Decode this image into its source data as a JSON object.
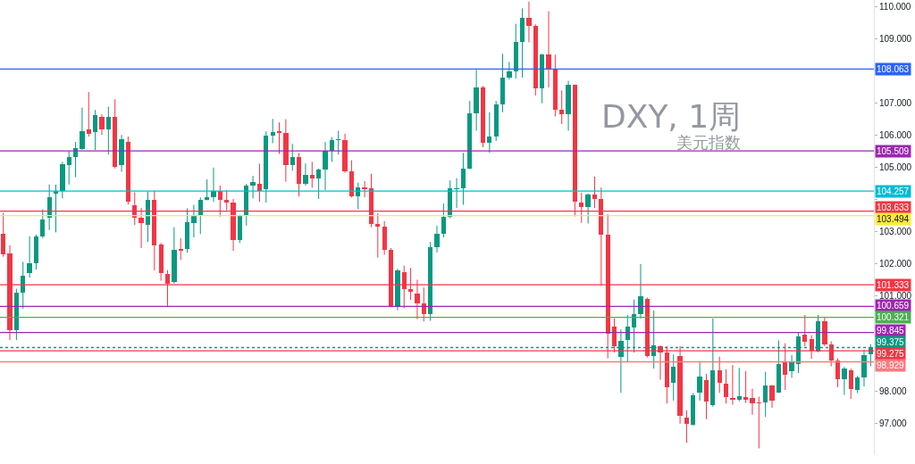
{
  "chart_data": {
    "type": "candlestick",
    "annotations": [
      "DXY, 1周",
      "美元指数"
    ],
    "categories": [
      null,
      null,
      null,
      null,
      null,
      null,
      null,
      null,
      null,
      null,
      null,
      null,
      null,
      null,
      null,
      null,
      null,
      null,
      null,
      null,
      null,
      null,
      null,
      null,
      null,
      null,
      null,
      null,
      null,
      null,
      null,
      null,
      null,
      null,
      null,
      null,
      null,
      null,
      null,
      null,
      null,
      null,
      null,
      null,
      null,
      null,
      null,
      null,
      null,
      null,
      null,
      null,
      null,
      null,
      null,
      null,
      null,
      null,
      null,
      null,
      null,
      null,
      null,
      null,
      null,
      null,
      null,
      null,
      null,
      null,
      null,
      null,
      null,
      null,
      null,
      null,
      null,
      null,
      null,
      null,
      null,
      null,
      null,
      null,
      null,
      null,
      null,
      null,
      null,
      null,
      null,
      null,
      null,
      null,
      null,
      null,
      null,
      null,
      null,
      null,
      null,
      null,
      null,
      null,
      null,
      null,
      null,
      null,
      null,
      null,
      null,
      null,
      null,
      null,
      null,
      null,
      null,
      null,
      null,
      null,
      null,
      null,
      null,
      null,
      null,
      null,
      null,
      null,
      null,
      null,
      null,
      null,
      null
    ],
    "ohlc": [
      [
        102.93,
        103.58,
        102.21,
        102.28
      ],
      [
        102.3,
        102.57,
        99.61,
        99.91
      ],
      [
        99.91,
        101.21,
        99.61,
        101.09
      ],
      [
        101.09,
        102.05,
        100.58,
        101.63
      ],
      [
        101.71,
        102.85,
        101.56,
        102.02
      ],
      [
        102.02,
        102.9,
        101.81,
        102.85
      ],
      [
        102.85,
        103.69,
        102.79,
        103.38
      ],
      [
        103.44,
        104.46,
        103.04,
        104.08
      ],
      [
        104.2,
        104.46,
        102.97,
        104.25
      ],
      [
        104.26,
        105.17,
        104.03,
        105.11
      ],
      [
        105.06,
        105.49,
        104.46,
        105.33
      ],
      [
        105.31,
        105.79,
        104.69,
        105.59
      ],
      [
        105.57,
        106.86,
        105.54,
        106.13
      ],
      [
        106.17,
        107.35,
        105.96,
        106.05
      ],
      [
        106.1,
        106.79,
        105.54,
        106.63
      ],
      [
        106.58,
        106.65,
        106.01,
        106.17
      ],
      [
        106.17,
        106.89,
        105.4,
        106.56
      ],
      [
        106.58,
        107.12,
        104.96,
        105.01
      ],
      [
        105.08,
        106.01,
        104.86,
        105.87
      ],
      [
        105.79,
        105.96,
        103.84,
        103.94
      ],
      [
        103.83,
        104.22,
        103.2,
        103.43
      ],
      [
        103.43,
        103.73,
        102.48,
        103.27
      ],
      [
        103.2,
        104.24,
        102.67,
        103.99
      ],
      [
        103.99,
        104.27,
        101.78,
        102.56
      ],
      [
        102.6,
        102.64,
        101.46,
        101.71
      ],
      [
        101.68,
        101.79,
        100.65,
        101.37
      ],
      [
        101.42,
        103.13,
        101.37,
        102.42
      ],
      [
        102.45,
        102.79,
        102.11,
        102.42
      ],
      [
        102.45,
        103.72,
        102.34,
        103.29
      ],
      [
        103.27,
        103.83,
        102.81,
        103.48
      ],
      [
        103.48,
        104.06,
        102.92,
        103.97
      ],
      [
        103.97,
        104.62,
        103.97,
        104.08
      ],
      [
        104.08,
        104.99,
        103.92,
        104.27
      ],
      [
        104.27,
        104.43,
        103.46,
        103.97
      ],
      [
        103.97,
        104.29,
        103.66,
        103.89
      ],
      [
        103.89,
        104.01,
        102.39,
        102.73
      ],
      [
        102.73,
        103.52,
        102.64,
        103.47
      ],
      [
        103.47,
        104.48,
        103.18,
        104.43
      ],
      [
        104.43,
        104.73,
        104.03,
        104.55
      ],
      [
        104.49,
        105.11,
        103.92,
        104.27
      ],
      [
        104.31,
        106.12,
        103.9,
        106.0
      ],
      [
        106.0,
        106.51,
        105.75,
        106.1
      ],
      [
        106.12,
        106.4,
        105.42,
        106.08
      ],
      [
        106.08,
        106.5,
        104.55,
        105.08
      ],
      [
        105.08,
        105.73,
        104.89,
        105.31
      ],
      [
        105.31,
        105.45,
        104.09,
        104.49
      ],
      [
        104.49,
        105.12,
        104.43,
        104.75
      ],
      [
        104.75,
        105.17,
        104.36,
        104.64
      ],
      [
        104.64,
        104.96,
        104.01,
        104.94
      ],
      [
        104.94,
        105.79,
        104.29,
        105.51
      ],
      [
        105.51,
        105.94,
        105.17,
        105.85
      ],
      [
        105.85,
        106.14,
        105.4,
        105.87
      ],
      [
        105.85,
        106.05,
        104.83,
        104.87
      ],
      [
        104.87,
        105.22,
        104.06,
        104.09
      ],
      [
        104.09,
        104.52,
        103.69,
        104.36
      ],
      [
        104.36,
        104.57,
        104.06,
        104.32
      ],
      [
        104.34,
        104.8,
        103.13,
        103.22
      ],
      [
        103.22,
        103.57,
        102.18,
        103.16
      ],
      [
        103.16,
        103.32,
        102.27,
        102.42
      ],
      [
        102.42,
        102.48,
        100.63,
        100.67
      ],
      [
        100.67,
        101.83,
        100.54,
        101.77
      ],
      [
        101.74,
        101.93,
        100.6,
        101.21
      ],
      [
        101.21,
        101.86,
        100.86,
        101.12
      ],
      [
        101.05,
        101.49,
        100.26,
        100.75
      ],
      [
        100.75,
        101.25,
        100.19,
        100.41
      ],
      [
        100.41,
        102.67,
        100.21,
        102.51
      ],
      [
        102.51,
        103.18,
        102.34,
        102.92
      ],
      [
        102.92,
        103.87,
        102.81,
        103.46
      ],
      [
        103.46,
        104.59,
        103.41,
        104.34
      ],
      [
        104.32,
        104.66,
        103.73,
        104.34
      ],
      [
        104.34,
        105.45,
        103.83,
        104.96
      ],
      [
        104.96,
        107.07,
        104.94,
        106.68
      ],
      [
        106.68,
        108.04,
        106.14,
        107.49
      ],
      [
        107.49,
        107.54,
        105.63,
        105.77
      ],
      [
        105.77,
        106.72,
        105.45,
        105.96
      ],
      [
        105.96,
        107.07,
        105.82,
        106.96
      ],
      [
        106.96,
        108.54,
        106.72,
        107.81
      ],
      [
        107.81,
        108.29,
        107.74,
        108.0
      ],
      [
        108.0,
        109.48,
        107.77,
        108.92
      ],
      [
        108.92,
        109.96,
        107.8,
        109.65
      ],
      [
        109.65,
        110.17,
        108.9,
        109.4
      ],
      [
        109.4,
        109.46,
        107.24,
        107.46
      ],
      [
        107.46,
        108.54,
        107.0,
        108.51
      ],
      [
        108.51,
        109.87,
        107.49,
        108.09
      ],
      [
        108.09,
        108.51,
        106.59,
        106.79
      ],
      [
        106.79,
        107.4,
        106.35,
        106.65
      ],
      [
        106.65,
        107.7,
        106.14,
        107.58
      ],
      [
        107.58,
        107.58,
        103.47,
        103.92
      ],
      [
        103.9,
        104.2,
        103.27,
        103.75
      ],
      [
        103.75,
        104.18,
        103.25,
        104.15
      ],
      [
        104.15,
        104.71,
        103.73,
        104.01
      ],
      [
        104.01,
        104.37,
        101.31,
        102.91
      ],
      [
        102.91,
        103.54,
        99.04,
        99.81
      ],
      [
        100.02,
        100.29,
        99.22,
        99.42
      ],
      [
        99.09,
        99.94,
        97.96,
        99.58
      ],
      [
        99.6,
        100.39,
        98.93,
        100.03
      ],
      [
        100.0,
        100.87,
        99.22,
        100.43
      ],
      [
        100.43,
        101.98,
        100.28,
        100.99
      ],
      [
        100.9,
        100.94,
        99.07,
        99.11
      ],
      [
        99.11,
        100.53,
        98.72,
        99.44
      ],
      [
        99.42,
        99.44,
        98.37,
        99.22
      ],
      [
        99.22,
        99.42,
        97.63,
        98.14
      ],
      [
        98.27,
        99.16,
        97.72,
        98.79
      ],
      [
        99.11,
        99.42,
        97.0,
        97.25
      ],
      [
        97.19,
        97.42,
        96.4,
        97.0
      ],
      [
        96.98,
        97.96,
        96.94,
        97.88
      ],
      [
        97.98,
        98.95,
        97.72,
        98.46
      ],
      [
        98.37,
        98.55,
        97.14,
        97.7
      ],
      [
        97.59,
        100.28,
        97.53,
        98.67
      ],
      [
        98.67,
        99.09,
        97.96,
        98.27
      ],
      [
        98.24,
        98.7,
        97.63,
        97.84
      ],
      [
        97.81,
        98.83,
        97.59,
        97.74
      ],
      [
        97.74,
        98.74,
        97.7,
        97.86
      ],
      [
        97.84,
        98.64,
        97.65,
        97.74
      ],
      [
        97.81,
        98.09,
        97.28,
        97.63
      ],
      [
        97.65,
        97.84,
        96.23,
        97.64
      ],
      [
        97.65,
        98.62,
        97.21,
        98.18
      ],
      [
        98.18,
        98.21,
        97.5,
        97.72
      ],
      [
        97.96,
        99.6,
        97.96,
        98.86
      ],
      [
        98.95,
        99.51,
        98.05,
        98.53
      ],
      [
        98.65,
        99.14,
        98.43,
        98.95
      ],
      [
        98.86,
        99.85,
        98.58,
        99.73
      ],
      [
        99.77,
        100.39,
        99.42,
        99.57
      ],
      [
        99.63,
        99.76,
        99.02,
        99.27
      ],
      [
        99.25,
        100.39,
        99.23,
        100.2
      ],
      [
        100.2,
        100.31,
        99.42,
        99.48
      ],
      [
        99.48,
        99.57,
        98.79,
        98.98
      ],
      [
        98.98,
        99.04,
        98.14,
        98.39
      ],
      [
        98.39,
        98.77,
        97.9,
        98.72
      ],
      [
        98.67,
        98.72,
        97.77,
        98.07
      ],
      [
        98.05,
        98.49,
        97.96,
        98.44
      ],
      [
        98.44,
        99.3,
        98.16,
        99.14
      ],
      [
        99.16,
        99.48,
        98.79,
        99.38
      ]
    ],
    "colors": [
      "#f23645",
      "#f23645",
      "#089981",
      "#089981",
      "#089981",
      "#089981",
      "#089981",
      "#089981",
      "#089981",
      "#089981",
      "#089981",
      "#089981",
      "#089981",
      "#f23645",
      "#089981",
      "#f23645",
      "#089981",
      "#f23645",
      "#089981",
      "#f23645",
      "#f23645",
      "#f23645",
      "#089981",
      "#f23645",
      "#f23645",
      "#f23645",
      "#089981",
      "#f23645",
      "#089981",
      "#089981",
      "#089981",
      "#089981",
      "#089981",
      "#f23645",
      "#f23645",
      "#f23645",
      "#089981",
      "#089981",
      "#089981",
      "#f23645",
      "#089981",
      "#089981",
      "#f23645",
      "#f23645",
      "#089981",
      "#f23645",
      "#089981",
      "#f23645",
      "#089981",
      "#089981",
      "#089981",
      "#089981",
      "#f23645",
      "#f23645",
      "#089981",
      "#f23645",
      "#f23645",
      "#f23645",
      "#f23645",
      "#f23645",
      "#089981",
      "#f23645",
      "#f23645",
      "#f23645",
      "#f23645",
      "#089981",
      "#089981",
      "#089981",
      "#089981",
      "#089981",
      "#089981",
      "#089981",
      "#089981",
      "#f23645",
      "#089981",
      "#089981",
      "#089981",
      "#089981",
      "#089981",
      "#089981",
      "#f23645",
      "#f23645",
      "#089981",
      "#f23645",
      "#f23645",
      "#f23645",
      "#089981",
      "#f23645",
      "#f23645",
      "#089981",
      "#f23645",
      "#f23645",
      "#f23645",
      "#f23645",
      "#089981",
      "#089981",
      "#089981",
      "#089981",
      "#f23645",
      "#089981",
      "#f23645",
      "#f23645",
      "#089981",
      "#f23645",
      "#f23645",
      "#089981",
      "#089981",
      "#f23645",
      "#089981",
      "#f23645",
      "#f23645",
      "#f23645",
      "#089981",
      "#f23645",
      "#f23645",
      "#f23645",
      "#089981",
      "#f23645",
      "#089981",
      "#f23645",
      "#089981",
      "#089981",
      "#f23645",
      "#f23645",
      "#089981",
      "#f23645",
      "#f23645",
      "#f23645",
      "#089981",
      "#f23645",
      "#089981",
      "#089981",
      "#089981"
    ],
    "ylim": [
      96.02,
      110.22
    ],
    "yticks": [
      {
        "value": 97,
        "label": "97.000"
      },
      {
        "value": 98,
        "label": "98.000"
      },
      {
        "value": 99,
        "label": null
      },
      {
        "value": 100,
        "label": null
      },
      {
        "value": 101,
        "label": "101.000"
      },
      {
        "value": 102,
        "label": "102.000"
      },
      {
        "value": 103,
        "label": "103.000"
      },
      {
        "value": 104,
        "label": null
      },
      {
        "value": 105,
        "label": "105.000"
      },
      {
        "value": 106,
        "label": "106.000"
      },
      {
        "value": 107,
        "label": "107.000"
      },
      {
        "value": 108,
        "label": null
      },
      {
        "value": 109,
        "label": "109.000"
      },
      {
        "value": 110,
        "label": "110.000"
      }
    ],
    "ref_lines": [
      {
        "axis": "y",
        "value": 108.063,
        "label": "108.063",
        "color": "#2962ff"
      },
      {
        "axis": "y",
        "value": 105.509,
        "label": "105.509",
        "color": "#9c27b0"
      },
      {
        "axis": "y",
        "value": 104.257,
        "label": "104.257",
        "color": "#00bcd4"
      },
      {
        "axis": "y",
        "value": 103.633,
        "label": "103.633",
        "color": "#f23645"
      },
      {
        "axis": "y",
        "value": 103.494,
        "label": "103.494",
        "color": "#ffeb3b"
      },
      {
        "axis": "y",
        "value": 101.333,
        "label": "101.333",
        "color": "#f23645"
      },
      {
        "axis": "y",
        "value": 100.659,
        "label": "100.659",
        "color": "#9c27b0"
      },
      {
        "axis": "y",
        "value": 100.321,
        "label": "100.321",
        "color": "#4caf50"
      },
      {
        "axis": "y",
        "value": 99.845,
        "label": "99.845",
        "color": "#9c27b0"
      },
      {
        "axis": "y",
        "value": 99.375,
        "label": "99.375",
        "color": "#089981",
        "line_style": "dotted"
      },
      {
        "axis": "y",
        "value": 99.275,
        "label": "99.275",
        "color": "#f23645"
      },
      {
        "axis": "y",
        "value": 98.929,
        "label": "98.929",
        "color": "#f77c80"
      }
    ]
  }
}
